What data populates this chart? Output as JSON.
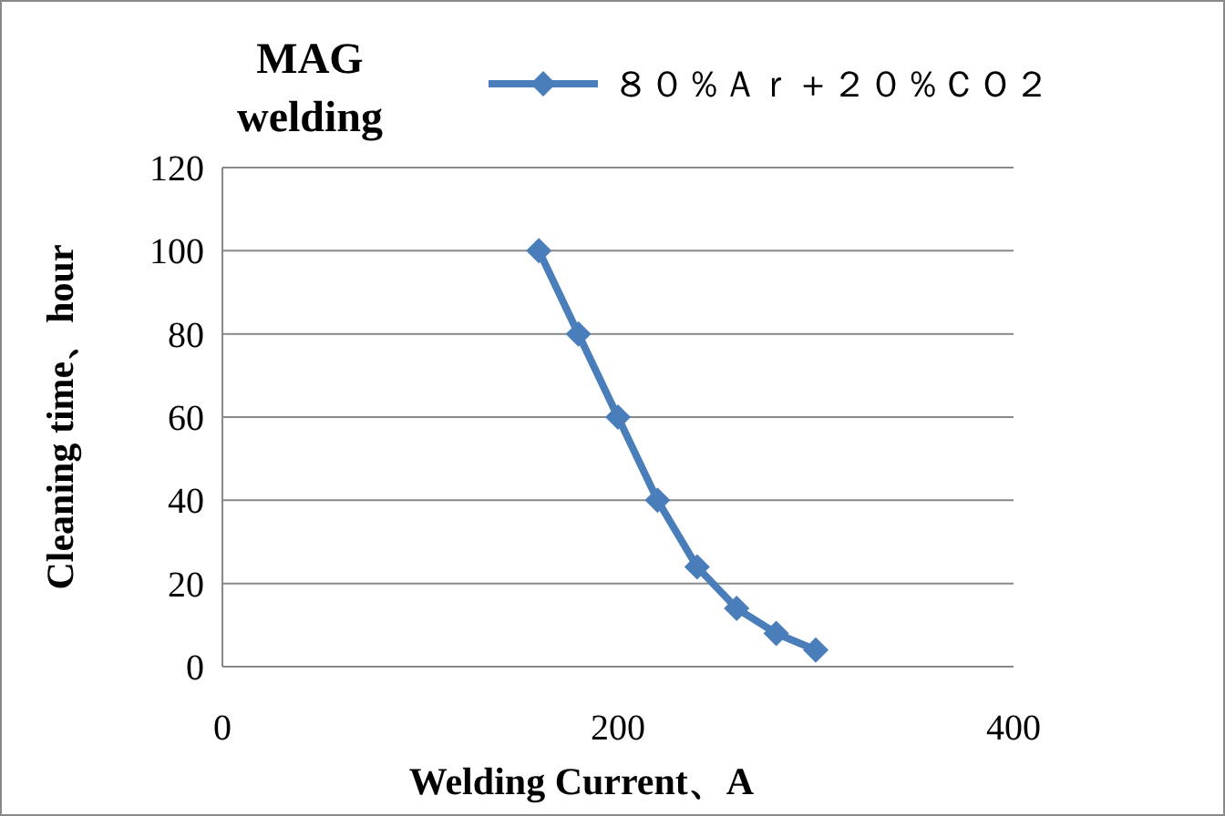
{
  "chart_data": {
    "type": "line",
    "title": "MAG welding",
    "xlabel": "Welding Current、A",
    "ylabel": "Cleaning time、hour",
    "x": [
      160,
      180,
      200,
      220,
      240,
      260,
      280,
      300
    ],
    "series": [
      {
        "name": "８０％Ａｒ＋２０％ＣＯ２",
        "color": "#4a7ebb",
        "values": [
          100,
          80,
          60,
          40,
          24,
          14,
          8,
          4
        ]
      }
    ],
    "xlim": [
      0,
      400
    ],
    "xticks": [
      0,
      200,
      400
    ],
    "ylim": [
      0,
      120
    ],
    "yticks": [
      0,
      20,
      40,
      60,
      80,
      100,
      120
    ],
    "grid": "y",
    "legend": "top right",
    "marker": "diamond",
    "line_style": "solid"
  }
}
